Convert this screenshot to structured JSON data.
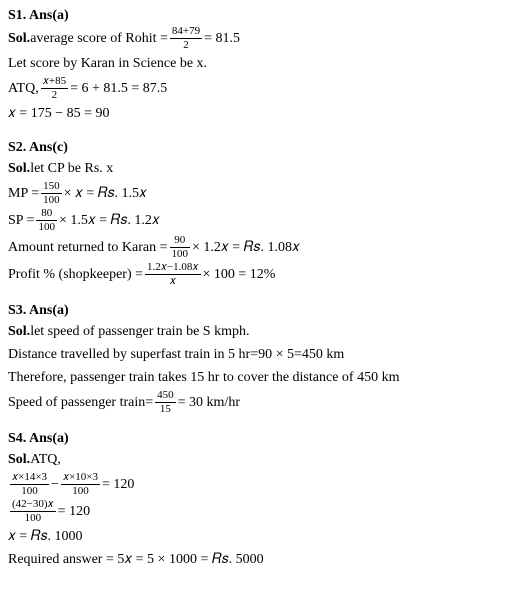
{
  "s1": {
    "header": "S1. Ans(a)",
    "line1_pre": "Sol.",
    "line1_mid": " average score of Rohit = ",
    "frac1_num": "84+79",
    "frac1_den": "2",
    "line1_post": " = 81.5",
    "line2": "Let score by Karan in Science be x.",
    "line3_pre": "ATQ, ",
    "frac2_num": "𝑥+85",
    "frac2_den": "2",
    "line3_post": " = 6 + 81.5 = 87.5",
    "line4": " 𝑥 = 175 − 85 = 90"
  },
  "s2": {
    "header": "S2. Ans(c)",
    "line1_pre": "Sol.",
    "line1_post": " let CP be Rs. x",
    "line2_pre": "MP = ",
    "frac1_num": "150",
    "frac1_den": "100",
    "line2_post": " × 𝑥 = 𝑅𝑠. 1.5𝑥",
    "line3_pre": "SP = ",
    "frac2_num": "80",
    "frac2_den": "100",
    "line3_post": " × 1.5𝑥 = 𝑅𝑠. 1.2𝑥",
    "line4_pre": "Amount returned to Karan = ",
    "frac3_num": "90",
    "frac3_den": "100",
    "line4_post": " × 1.2𝑥 = 𝑅𝑠. 1.08𝑥",
    "line5_pre": "Profit % (shopkeeper)  = ",
    "frac4_num": "1.2𝑥−1.08𝑥",
    "frac4_den": "𝑥",
    "line5_post": " × 100 = 12%"
  },
  "s3": {
    "header": "S3. Ans(a)",
    "line1_pre": "Sol.",
    "line1_post": " let speed of passenger train be S kmph.",
    "line2": "Distance travelled by superfast train in 5 hr=90 × 5=450 km",
    "line3": "Therefore, passenger train  takes 15 hr to cover the distance of 450 km",
    "line4_pre": "Speed of passenger train= ",
    "frac1_num": "450",
    "frac1_den": "15",
    "line4_post": " = 30 km/hr"
  },
  "s4": {
    "header": "S4. Ans(a)",
    "line1_pre": "Sol.",
    "line1_post": " ATQ,",
    "frac1_num": "𝑥×14×3",
    "frac1_den": "100",
    "line2_mid": " − ",
    "frac2_num": "𝑥×10×3",
    "frac2_den": "100",
    "line2_post": " = 120",
    "frac3_num": "(42−30)𝑥",
    "frac3_den": "100",
    "line3_post": " = 120",
    "line4": "𝑥 = 𝑅𝑠. 1000",
    "line5": "Required answer = 5𝑥 = 5 × 1000 = 𝑅𝑠. 5000"
  }
}
